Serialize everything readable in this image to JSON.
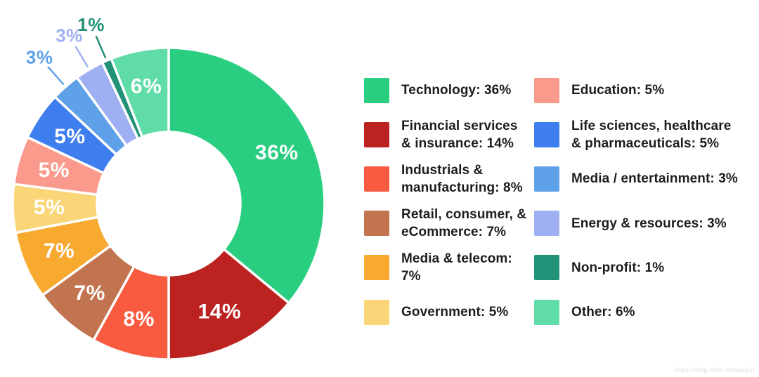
{
  "page": {
    "background": "#ffffff",
    "watermark": "https://blog.csdn.net/weixin"
  },
  "chart_data": {
    "type": "pie",
    "subtype": "donut",
    "title": "",
    "unit": "%",
    "total": 100,
    "direction": "clockwise",
    "start_angle_deg": 0,
    "inner_radius_ratio": 0.46,
    "slice_gap_color": "#ffffff",
    "legend_position": "right",
    "legend_columns": 2,
    "segments": [
      {
        "name": "technology",
        "label": "Technology",
        "value": 36,
        "display": "36%",
        "color": "#29CE80",
        "label_placement": "inside",
        "legend_text": "Technology: 36%"
      },
      {
        "name": "financial-services-insurance",
        "label": "Financial services & insurance",
        "value": 14,
        "display": "14%",
        "color": "#BB2220",
        "label_placement": "inside",
        "legend_text": "Financial services\n& insurance: 14%"
      },
      {
        "name": "industrials-manufacturing",
        "label": "Industrials & manufacturing",
        "value": 8,
        "display": "8%",
        "color": "#F95B40",
        "label_placement": "inside",
        "legend_text": "Industrials &\nmanufacturing: 8%"
      },
      {
        "name": "retail-consumer-ecommerce",
        "label": "Retail, consumer, & eCommerce",
        "value": 7,
        "display": "7%",
        "color": "#C2734F",
        "label_placement": "inside",
        "legend_text": "Retail, consumer, &\neCommerce: 7%"
      },
      {
        "name": "media-telecom",
        "label": "Media & telecom",
        "value": 7,
        "display": "7%",
        "color": "#F8A930",
        "label_placement": "inside",
        "legend_text": "Media & telecom: 7%"
      },
      {
        "name": "government",
        "label": "Government",
        "value": 5,
        "display": "5%",
        "color": "#FBD678",
        "label_placement": "inside",
        "legend_text": "Government: 5%"
      },
      {
        "name": "education",
        "label": "Education",
        "value": 5,
        "display": "5%",
        "color": "#FA9A8C",
        "label_placement": "inside",
        "legend_text": "Education: 5%"
      },
      {
        "name": "life-sciences-healthcare-pharmaceuticals",
        "label": "Life sciences, healthcare & pharmaceuticals",
        "value": 5,
        "display": "5%",
        "color": "#3E7EEE",
        "label_placement": "inside",
        "legend_text": "Life sciences, healthcare\n& pharmaceuticals: 5%"
      },
      {
        "name": "media-entertainment",
        "label": "Media / entertainment",
        "value": 3,
        "display": "3%",
        "color": "#5FA1E8",
        "label_placement": "outside",
        "legend_text": "Media / entertainment: 3%"
      },
      {
        "name": "energy-resources",
        "label": "Energy & resources",
        "value": 3,
        "display": "3%",
        "color": "#9FB0F2",
        "label_placement": "outside",
        "legend_text": "Energy & resources: 3%"
      },
      {
        "name": "non-profit",
        "label": "Non-profit",
        "value": 1,
        "display": "1%",
        "color": "#219178",
        "label_placement": "outside",
        "legend_text": "Non-profit: 1%"
      },
      {
        "name": "other",
        "label": "Other",
        "value": 6,
        "display": "6%",
        "color": "#5FDCA7",
        "label_placement": "inside",
        "legend_text": "Other: 6%"
      }
    ]
  }
}
